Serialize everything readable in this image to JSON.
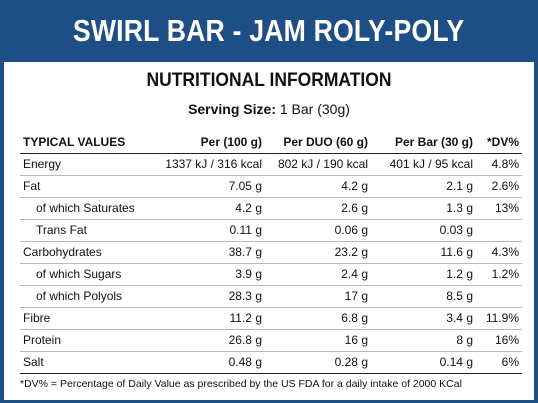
{
  "banner": {
    "title": "SWIRL BAR - JAM ROLY-POLY"
  },
  "label": {
    "heading": "NUTRITIONAL INFORMATION",
    "serving_label": "Serving Size:",
    "serving_value": "1 Bar (30g)"
  },
  "table": {
    "headers": [
      "TYPICAL VALUES",
      "Per (100 g)",
      "Per DUO (60 g)",
      "Per Bar (30 g)",
      "*DV%"
    ],
    "rows": [
      {
        "name": "Energy",
        "sub": false,
        "cells": [
          "1337 kJ / 316 kcal",
          "802 kJ / 190 kcal",
          "401 kJ / 95 kcal",
          "4.8%"
        ]
      },
      {
        "name": "Fat",
        "sub": false,
        "cells": [
          "7.05 g",
          "4.2 g",
          "2.1 g",
          "2.6%"
        ]
      },
      {
        "name": "of which Saturates",
        "sub": true,
        "cells": [
          "4.2 g",
          "2.6 g",
          "1.3 g",
          "13%"
        ]
      },
      {
        "name": "Trans Fat",
        "sub": true,
        "cells": [
          "0.11 g",
          "0.06 g",
          "0.03 g",
          ""
        ]
      },
      {
        "name": "Carbohydrates",
        "sub": false,
        "cells": [
          "38.7 g",
          "23.2 g",
          "11.6 g",
          "4.3%"
        ]
      },
      {
        "name": "of which Sugars",
        "sub": true,
        "cells": [
          "3.9 g",
          "2.4 g",
          "1.2 g",
          "1.2%"
        ]
      },
      {
        "name": "of which Polyols",
        "sub": true,
        "cells": [
          "28.3 g",
          "17 g",
          "8.5 g",
          ""
        ]
      },
      {
        "name": "Fibre",
        "sub": false,
        "cells": [
          "11.2 g",
          "6.8 g",
          "3.4 g",
          "11.9%"
        ]
      },
      {
        "name": "Protein",
        "sub": false,
        "cells": [
          "26.8 g",
          "16 g",
          "8 g",
          "16%"
        ]
      },
      {
        "name": "Salt",
        "sub": false,
        "cells": [
          "0.48 g",
          "0.28 g",
          "0.14 g",
          "6%"
        ]
      }
    ]
  },
  "footnote": "*DV% = Percentage of Daily Value as prescribed by the US FDA for a daily intake of 2000 KCal",
  "colors": {
    "banner": "#1d4e86",
    "panel": "#ffffff",
    "text": "#111111"
  }
}
